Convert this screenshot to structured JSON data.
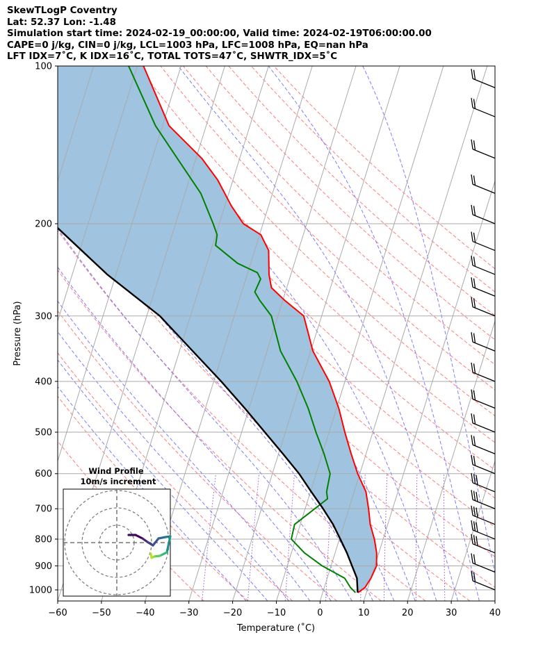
{
  "header": {
    "line1": "SkewTLogP Coventry",
    "line2": "Lat: 52.37   Lon: -1.48",
    "line3": "Simulation start time: 2024-02-19_00:00:00, Valid time: 2024-02-19T06:00:00.00",
    "line4": "CAPE=0 j/kg, CIN=0 j/kg, LCL=1003 hPa, LFC=1008 hPa, EQ=nan hPa",
    "line5": "LFT IDX=7˚C, K IDX=16˚C, TOTAL TOTS=47˚C, SHWTR_IDX=5˚C"
  },
  "chart_data": {
    "type": "skewt-logp",
    "xlabel": "Temperature (˚C)",
    "ylabel": "Pressure (hPa)",
    "xlim": [
      -60,
      40
    ],
    "ylim": [
      1050,
      100
    ],
    "x_scale": "skewed",
    "y_scale": "log",
    "grid": true,
    "x_ticks": [
      -60,
      -50,
      -40,
      -30,
      -20,
      -10,
      0,
      10,
      20,
      30,
      40
    ],
    "y_ticks": [
      100,
      200,
      300,
      400,
      500,
      600,
      700,
      800,
      900,
      1000
    ],
    "series": [
      {
        "role": "temperature",
        "color": "#ff0000",
        "points": [
          [
            8.1,
            1012
          ],
          [
            9.3,
            990
          ],
          [
            10,
            950
          ],
          [
            10.4,
            900
          ],
          [
            9.5,
            850
          ],
          [
            8,
            800
          ],
          [
            6,
            750
          ],
          [
            4.5,
            700
          ],
          [
            2.7,
            650
          ],
          [
            -0.5,
            600
          ],
          [
            -3.4,
            550
          ],
          [
            -6.4,
            500
          ],
          [
            -9.5,
            450
          ],
          [
            -13.6,
            400
          ],
          [
            -19.5,
            350
          ],
          [
            -24.1,
            300
          ],
          [
            -29.6,
            280
          ],
          [
            -33.5,
            265
          ],
          [
            -35,
            250
          ],
          [
            -36.8,
            225
          ],
          [
            -39.7,
            210
          ],
          [
            -44.5,
            200
          ],
          [
            -48.5,
            185
          ],
          [
            -53.5,
            165
          ],
          [
            -58.7,
            150
          ],
          [
            -68.5,
            130
          ],
          [
            -78.6,
            100
          ]
        ]
      },
      {
        "role": "dewpoint",
        "color": "#008000",
        "points": [
          [
            7.5,
            1012
          ],
          [
            6,
            990
          ],
          [
            4,
            950
          ],
          [
            -2,
            900
          ],
          [
            -7,
            850
          ],
          [
            -11,
            800
          ],
          [
            -11.3,
            750
          ],
          [
            -7.8,
            700
          ],
          [
            -5.6,
            670
          ],
          [
            -6.3,
            650
          ],
          [
            -6.8,
            600
          ],
          [
            -9.6,
            550
          ],
          [
            -13,
            500
          ],
          [
            -16.5,
            450
          ],
          [
            -21,
            400
          ],
          [
            -26.9,
            350
          ],
          [
            -31.5,
            300
          ],
          [
            -35.3,
            280
          ],
          [
            -37,
            270
          ],
          [
            -36.6,
            255
          ],
          [
            -37.8,
            248
          ],
          [
            -43,
            238
          ],
          [
            -49.3,
            220
          ],
          [
            -49.7,
            210
          ],
          [
            -51.4,
            200
          ],
          [
            -56.4,
            175
          ],
          [
            -64.3,
            150
          ],
          [
            -71.6,
            130
          ],
          [
            -82,
            100
          ]
        ]
      },
      {
        "role": "parcel",
        "color": "#000000",
        "points": [
          [
            8,
            1012
          ],
          [
            6.8,
            950
          ],
          [
            4.8,
            900
          ],
          [
            2.7,
            850
          ],
          [
            0.2,
            800
          ],
          [
            -2.5,
            750
          ],
          [
            -5.9,
            700
          ],
          [
            -9.8,
            650
          ],
          [
            -13.9,
            600
          ],
          [
            -19,
            550
          ],
          [
            -24.7,
            500
          ],
          [
            -31,
            450
          ],
          [
            -38.3,
            400
          ],
          [
            -47,
            350
          ],
          [
            -57,
            300
          ],
          [
            -72,
            250
          ],
          [
            -88,
            200
          ],
          [
            -105,
            150
          ],
          [
            -127,
            100
          ]
        ]
      }
    ],
    "cape_shading_color": "#a0c4df",
    "isotherm_color": "#aaaaaa",
    "dry_adiabat_color": "#ff6464",
    "moist_adiabat_color": "#6464ff",
    "mixing_ratio_color": "#9944cc",
    "wind_barbs": {
      "color": "#000000",
      "x_position_note": "right side at 40˚C",
      "levels_hpa": [
        1000,
        925,
        850,
        800,
        750,
        700,
        650,
        600,
        550,
        500,
        450,
        400,
        350,
        300,
        275,
        250,
        225,
        200,
        175,
        150,
        125,
        110
      ]
    },
    "inset": {
      "title_line1": "Wind Profile",
      "title_line2": "10m/s increment",
      "ring_spacing_ms": 10
    }
  }
}
